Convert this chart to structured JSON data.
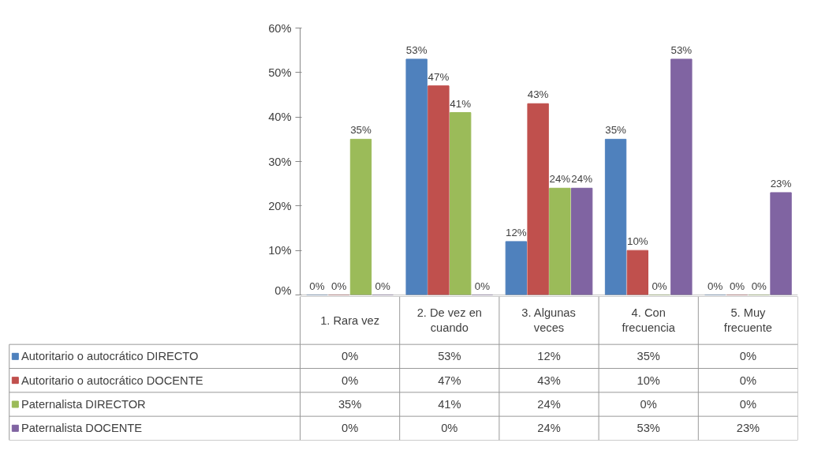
{
  "chart_data": {
    "type": "bar",
    "categories": [
      "1. Rara vez",
      "2. De vez en cuando",
      "3. Algunas veces",
      "4. Con frecuencia",
      "5. Muy frecuente"
    ],
    "ylim": [
      0,
      60
    ],
    "yticks": [
      {
        "value": 0,
        "label": "0%"
      },
      {
        "value": 10,
        "label": "10%"
      },
      {
        "value": 20,
        "label": "20%"
      },
      {
        "value": 30,
        "label": "30%"
      },
      {
        "value": 40,
        "label": "40%"
      },
      {
        "value": 50,
        "label": "50%"
      },
      {
        "value": 60,
        "label": "60%"
      }
    ],
    "grid": false,
    "legend": "bottom",
    "series": [
      {
        "name": "Autoritario o autocrático DIRECTO",
        "color": "#4f81bd",
        "values": [
          0,
          53,
          12,
          35,
          0
        ],
        "value_labels": [
          "0%",
          "53%",
          "12%",
          "35%",
          "0%"
        ]
      },
      {
        "name": "Autoritario o autocrático DOCENTE",
        "color": "#c0504d",
        "values": [
          0,
          47,
          43,
          10,
          0
        ],
        "value_labels": [
          "0%",
          "47%",
          "43%",
          "10%",
          "0%"
        ]
      },
      {
        "name": "Paternalista DIRECTOR",
        "color": "#9bbb59",
        "values": [
          35,
          41,
          24,
          0,
          0
        ],
        "value_labels": [
          "35%",
          "41%",
          "24%",
          "0%",
          "0%"
        ]
      },
      {
        "name": "Paternalista DOCENTE",
        "color": "#8064a2",
        "values": [
          0,
          0,
          24,
          53,
          23
        ],
        "value_labels": [
          "0%",
          "0%",
          "24%",
          "53%",
          "23%"
        ]
      }
    ]
  }
}
